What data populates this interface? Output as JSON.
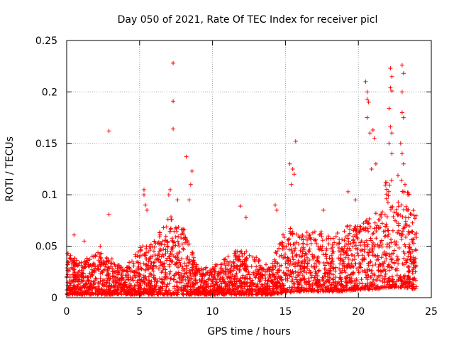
{
  "chart_data": {
    "type": "scatter",
    "title": "Day 050 of 2021, Rate Of TEC Index for receiver picl",
    "xlabel": "GPS time / hours",
    "ylabel": "ROTI / TECUs",
    "xlim": [
      0,
      25
    ],
    "ylim": [
      0,
      0.25
    ],
    "xticks": [
      0,
      5,
      10,
      15,
      20,
      25
    ],
    "yticks": [
      0,
      0.05,
      0.1,
      0.15,
      0.2,
      0.25
    ],
    "xtick_labels": [
      "0",
      "5",
      "10",
      "15",
      "20",
      "25"
    ],
    "ytick_labels": [
      "0",
      "0.05",
      "0.1",
      "0.15",
      "0.2",
      "0.25"
    ],
    "grid": true,
    "marker": "+",
    "color": "#ff0000",
    "series": [
      {
        "name": "ROTI",
        "envelope": [
          {
            "x": 0.0,
            "low": 0.003,
            "high": 0.045
          },
          {
            "x": 1.0,
            "low": 0.003,
            "high": 0.035
          },
          {
            "x": 2.0,
            "low": 0.003,
            "high": 0.045
          },
          {
            "x": 3.0,
            "low": 0.003,
            "high": 0.04
          },
          {
            "x": 4.0,
            "low": 0.003,
            "high": 0.028
          },
          {
            "x": 5.0,
            "low": 0.003,
            "high": 0.05
          },
          {
            "x": 6.0,
            "low": 0.003,
            "high": 0.055
          },
          {
            "x": 7.0,
            "low": 0.003,
            "high": 0.08
          },
          {
            "x": 8.0,
            "low": 0.003,
            "high": 0.07
          },
          {
            "x": 9.0,
            "low": 0.003,
            "high": 0.03
          },
          {
            "x": 10.0,
            "low": 0.003,
            "high": 0.03
          },
          {
            "x": 11.0,
            "low": 0.003,
            "high": 0.04
          },
          {
            "x": 12.0,
            "low": 0.003,
            "high": 0.05
          },
          {
            "x": 13.0,
            "low": 0.003,
            "high": 0.04
          },
          {
            "x": 14.0,
            "low": 0.003,
            "high": 0.03
          },
          {
            "x": 15.0,
            "low": 0.005,
            "high": 0.075
          },
          {
            "x": 16.0,
            "low": 0.006,
            "high": 0.06
          },
          {
            "x": 17.0,
            "low": 0.006,
            "high": 0.07
          },
          {
            "x": 18.0,
            "low": 0.006,
            "high": 0.06
          },
          {
            "x": 19.0,
            "low": 0.006,
            "high": 0.07
          },
          {
            "x": 20.0,
            "low": 0.008,
            "high": 0.07
          },
          {
            "x": 21.0,
            "low": 0.008,
            "high": 0.08
          },
          {
            "x": 22.0,
            "low": 0.01,
            "high": 0.12
          },
          {
            "x": 23.0,
            "low": 0.01,
            "high": 0.12
          },
          {
            "x": 24.0,
            "low": 0.008,
            "high": 0.08
          }
        ],
        "outliers": [
          [
            0.5,
            0.061
          ],
          [
            1.2,
            0.055
          ],
          [
            2.3,
            0.05
          ],
          [
            2.9,
            0.162
          ],
          [
            2.9,
            0.081
          ],
          [
            5.3,
            0.105
          ],
          [
            5.3,
            0.1
          ],
          [
            5.5,
            0.085
          ],
          [
            5.4,
            0.09
          ],
          [
            7.1,
            0.105
          ],
          [
            7.0,
            0.1
          ],
          [
            7.3,
            0.228
          ],
          [
            7.3,
            0.191
          ],
          [
            7.3,
            0.164
          ],
          [
            7.6,
            0.095
          ],
          [
            8.2,
            0.137
          ],
          [
            8.4,
            0.095
          ],
          [
            8.6,
            0.123
          ],
          [
            8.5,
            0.11
          ],
          [
            11.9,
            0.089
          ],
          [
            12.3,
            0.078
          ],
          [
            14.3,
            0.09
          ],
          [
            14.4,
            0.085
          ],
          [
            15.3,
            0.13
          ],
          [
            15.5,
            0.125
          ],
          [
            15.6,
            0.12
          ],
          [
            15.7,
            0.152
          ],
          [
            15.4,
            0.11
          ],
          [
            17.6,
            0.085
          ],
          [
            19.3,
            0.103
          ],
          [
            19.8,
            0.095
          ],
          [
            20.5,
            0.21
          ],
          [
            20.6,
            0.2
          ],
          [
            20.6,
            0.193
          ],
          [
            20.7,
            0.19
          ],
          [
            20.6,
            0.175
          ],
          [
            20.8,
            0.16
          ],
          [
            21.0,
            0.163
          ],
          [
            21.1,
            0.155
          ],
          [
            20.9,
            0.125
          ],
          [
            21.2,
            0.13
          ],
          [
            22.2,
            0.223
          ],
          [
            22.3,
            0.215
          ],
          [
            22.2,
            0.204
          ],
          [
            22.3,
            0.201
          ],
          [
            22.1,
            0.184
          ],
          [
            22.2,
            0.166
          ],
          [
            22.3,
            0.16
          ],
          [
            22.1,
            0.15
          ],
          [
            22.3,
            0.14
          ],
          [
            23.0,
            0.226
          ],
          [
            23.1,
            0.218
          ],
          [
            23.0,
            0.2
          ],
          [
            23.0,
            0.18
          ],
          [
            23.1,
            0.175
          ],
          [
            22.9,
            0.15
          ],
          [
            23.0,
            0.14
          ],
          [
            23.1,
            0.13
          ],
          [
            23.2,
            0.11
          ],
          [
            23.4,
            0.1
          ]
        ]
      }
    ]
  }
}
